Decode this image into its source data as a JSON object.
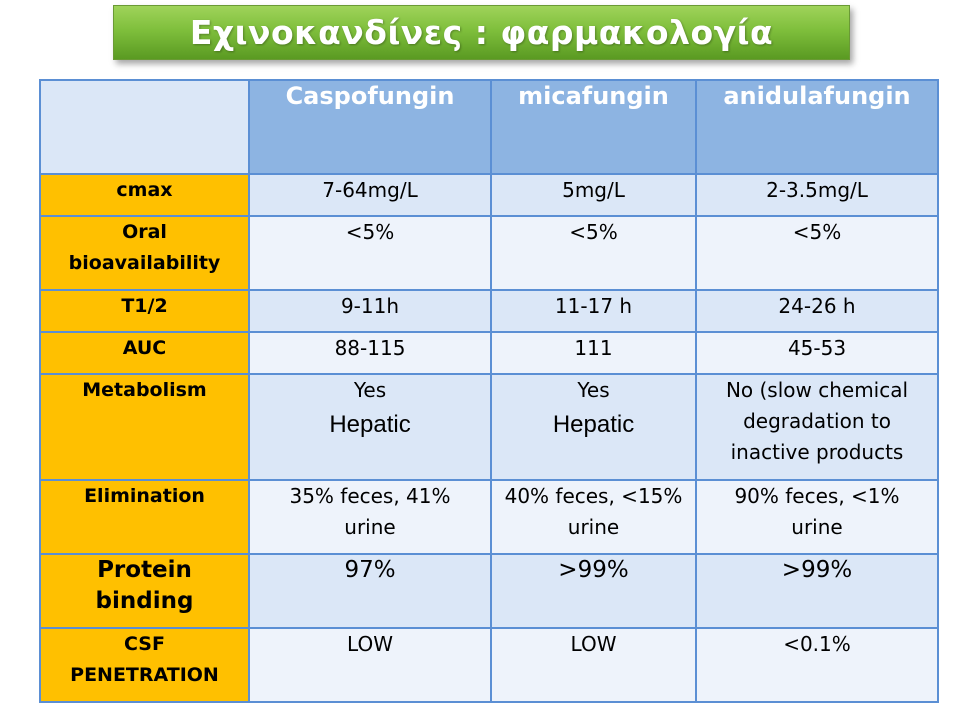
{
  "title": "Εχινοκανδίνες : φαρμακολογία",
  "columns": [
    "Caspofungin",
    "micafungin",
    "anidulafungin"
  ],
  "rows": [
    {
      "label": [
        "cmax"
      ],
      "values": [
        [
          "7-64mg/L"
        ],
        [
          "5mg/L"
        ],
        [
          "2-3.5mg/L"
        ]
      ]
    },
    {
      "label": [
        "Oral",
        "bioavailability"
      ],
      "values": [
        [
          "<5%"
        ],
        [
          "<5%"
        ],
        [
          "<5%"
        ]
      ]
    },
    {
      "label": [
        "T1/2"
      ],
      "values": [
        [
          "9-11h"
        ],
        [
          "11-17 h"
        ],
        [
          "24-26 h"
        ]
      ]
    },
    {
      "label": [
        "AUC"
      ],
      "values": [
        [
          "88-115"
        ],
        [
          "111"
        ],
        [
          "45-53"
        ]
      ]
    },
    {
      "label": [
        "Metabolism"
      ],
      "values": [
        [
          "Yes",
          "Hepatic"
        ],
        [
          "Yes",
          "Hepatic"
        ],
        [
          "No (slow chemical",
          "degradation to",
          "inactive products"
        ]
      ]
    },
    {
      "label": [
        "Elimination"
      ],
      "values": [
        [
          "35% feces, 41%",
          "urine"
        ],
        [
          "40% feces, <15%",
          "urine"
        ],
        [
          "90% feces, <1%",
          "urine"
        ]
      ]
    },
    {
      "label": [
        "Protein",
        "binding"
      ],
      "values": [
        [
          "97%"
        ],
        [
          ">99%"
        ],
        [
          ">99%"
        ]
      ]
    },
    {
      "label": [
        "CSF",
        "PENETRATION"
      ],
      "values": [
        [
          "LOW"
        ],
        [
          "LOW"
        ],
        [
          "<0.1%"
        ]
      ]
    }
  ]
}
